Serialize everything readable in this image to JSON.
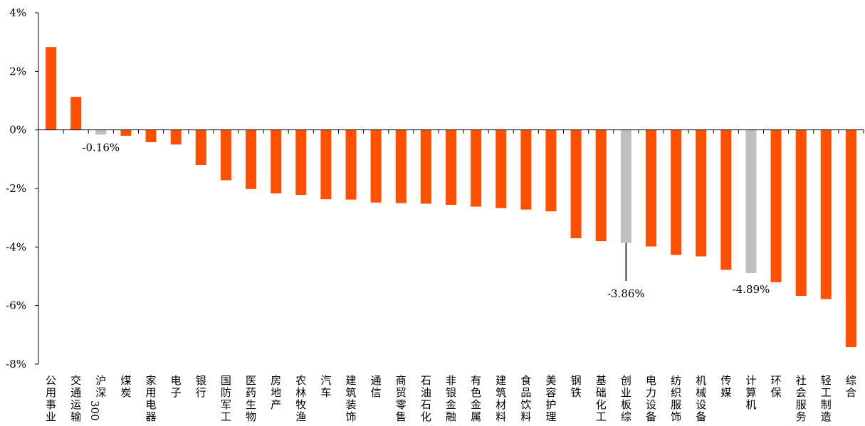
{
  "chart_data": {
    "type": "bar",
    "title": "",
    "xlabel": "",
    "ylabel": "",
    "ylim": [
      -8,
      4
    ],
    "yticks": [
      "-8%",
      "-6%",
      "-4%",
      "-2%",
      "0%",
      "2%",
      "4%"
    ],
    "yticks_values": [
      -8,
      -6,
      -4,
      -2,
      0,
      2,
      4
    ],
    "grid": false,
    "categories": [
      "公用事业",
      "交通运输",
      "沪深300",
      "煤炭",
      "家用电器",
      "电子",
      "银行",
      "国防军工",
      "医药生物",
      "房地产",
      "农林牧渔",
      "汽车",
      "建筑装饰",
      "通信",
      "商贸零售",
      "石油石化",
      "非银金融",
      "有色金属",
      "建筑材料",
      "食品饮料",
      "美容护理",
      "钢铁",
      "基础化工",
      "创业板综",
      "电力设备",
      "纺织服饰",
      "机械设备",
      "传媒",
      "计算机",
      "环保",
      "社会服务",
      "轻工制造",
      "综合"
    ],
    "values": [
      2.83,
      1.13,
      -0.16,
      -0.2,
      -0.42,
      -0.5,
      -1.2,
      -1.72,
      -2.02,
      -2.17,
      -2.22,
      -2.37,
      -2.38,
      -2.48,
      -2.5,
      -2.52,
      -2.56,
      -2.62,
      -2.67,
      -2.72,
      -2.78,
      -3.7,
      -3.8,
      -3.86,
      -3.98,
      -4.27,
      -4.32,
      -4.78,
      -4.89,
      -5.2,
      -5.67,
      -5.78,
      -7.42
    ],
    "highlight": [
      "沪深300",
      "创业板综",
      "计算机"
    ],
    "colors": {
      "default": "#FF5000",
      "highlight": "#BFBFBF",
      "axis": "#000000"
    },
    "annotations": [
      {
        "category": "沪深300",
        "text": "-0.16%"
      },
      {
        "category": "创业板综",
        "text": "-3.86%"
      },
      {
        "category": "计算机",
        "text": "-4.89%"
      }
    ]
  }
}
